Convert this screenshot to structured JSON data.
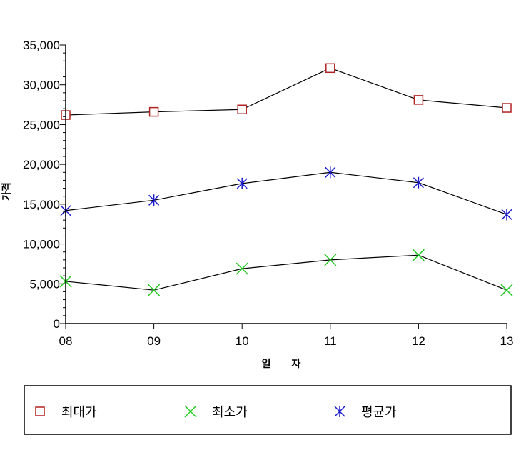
{
  "chart_data": {
    "type": "line",
    "title": "",
    "xlabel": "일 자",
    "ylabel": "가격",
    "x": [
      "08",
      "09",
      "10",
      "11",
      "12",
      "13"
    ],
    "y_ticks": [
      "0",
      "5,000",
      "10,000",
      "15,000",
      "20,000",
      "25,000",
      "30,000",
      "35,000"
    ],
    "ylim": [
      0,
      35000
    ],
    "grid": false,
    "legend_position": "bottom",
    "series": [
      {
        "name": "최대가",
        "marker": "square",
        "color": "#b22222",
        "values": [
          26200,
          26600,
          26900,
          32100,
          28100,
          27100
        ]
      },
      {
        "name": "최소가",
        "marker": "x",
        "color": "#22cc22",
        "values": [
          5300,
          4200,
          6900,
          8000,
          8600,
          4200
        ]
      },
      {
        "name": "평균가",
        "marker": "star",
        "color": "#1a1acc",
        "values": [
          14200,
          15500,
          17600,
          19000,
          17700,
          13700
        ]
      }
    ]
  }
}
